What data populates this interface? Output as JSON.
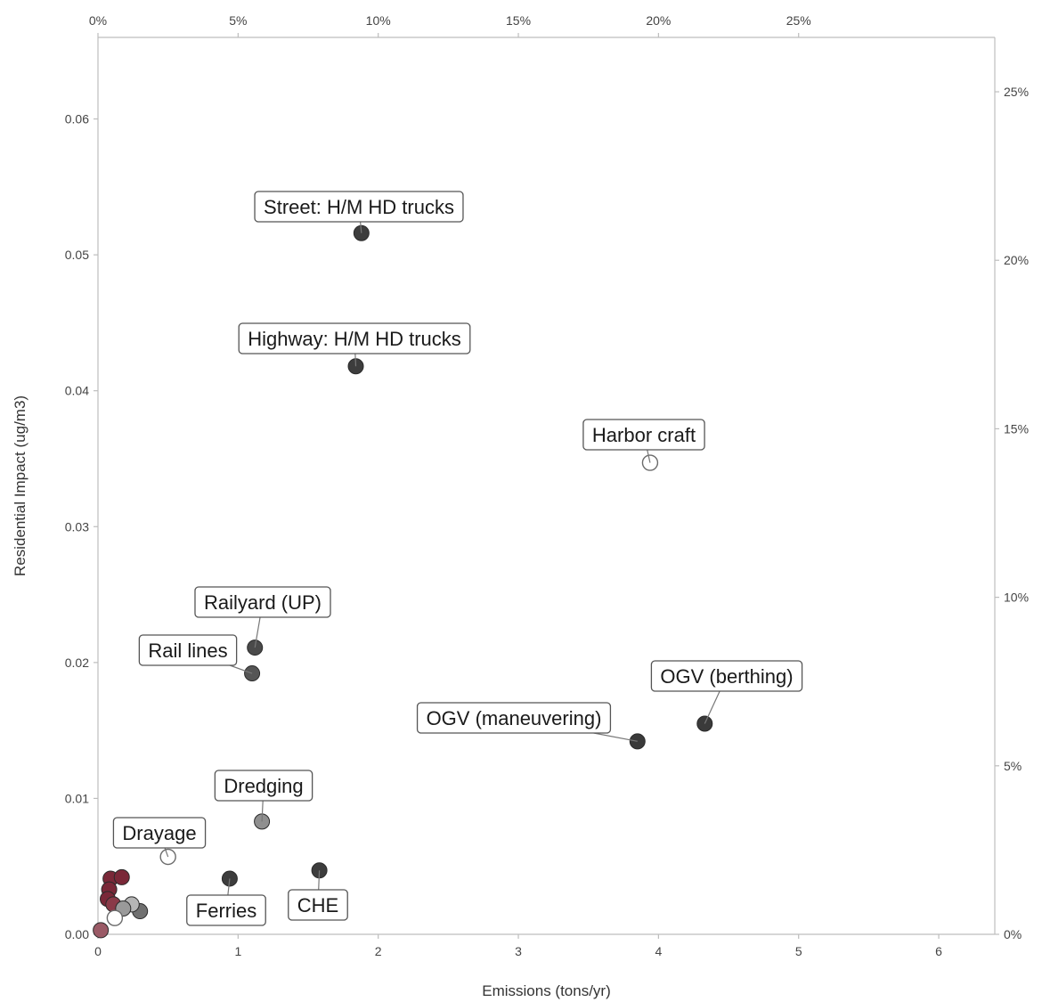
{
  "chart_data": {
    "type": "scatter",
    "title": "",
    "xlabel": "Emissions (tons/yr)",
    "ylabel": "Residential Impact (ug/m3)",
    "xlim": [
      0,
      6.4
    ],
    "ylim": [
      0,
      0.066
    ],
    "x_ticks": [
      {
        "value": 0,
        "label": "0"
      },
      {
        "value": 1,
        "label": "1"
      },
      {
        "value": 2,
        "label": "2"
      },
      {
        "value": 3,
        "label": "3"
      },
      {
        "value": 4,
        "label": "4"
      },
      {
        "value": 5,
        "label": "5"
      },
      {
        "value": 6,
        "label": "6"
      }
    ],
    "y_ticks": [
      {
        "value": 0,
        "label": "0.00"
      },
      {
        "value": 0.01,
        "label": "0.01"
      },
      {
        "value": 0.02,
        "label": "0.02"
      },
      {
        "value": 0.03,
        "label": "0.03"
      },
      {
        "value": 0.04,
        "label": "0.04"
      },
      {
        "value": 0.05,
        "label": "0.05"
      },
      {
        "value": 0.06,
        "label": "0.06"
      }
    ],
    "x2_axis": {
      "position": "top",
      "x_equivalent_per_percent": 0.2,
      "ticks": [
        {
          "value": 0,
          "label": "0%"
        },
        {
          "value": 5,
          "label": "5%"
        },
        {
          "value": 10,
          "label": "10%"
        },
        {
          "value": 15,
          "label": "15%"
        },
        {
          "value": 20,
          "label": "20%"
        },
        {
          "value": 25,
          "label": "25%"
        }
      ]
    },
    "y2_axis": {
      "position": "right",
      "y_equivalent_per_percent": 0.00248,
      "ticks": [
        {
          "value": 0,
          "label": "0%"
        },
        {
          "value": 5,
          "label": "5%"
        },
        {
          "value": 10,
          "label": "10%"
        },
        {
          "value": 15,
          "label": "15%"
        },
        {
          "value": 20,
          "label": "20%"
        },
        {
          "value": 25,
          "label": "25%"
        }
      ]
    },
    "grid": false,
    "points": [
      {
        "x": 1.88,
        "y": 0.0516,
        "label": "Street: H/M HD trucks",
        "color": "#3d3d3d",
        "hollow": false
      },
      {
        "x": 1.84,
        "y": 0.0418,
        "label": "Highway: H/M HD trucks",
        "color": "#3d3d3d",
        "hollow": false
      },
      {
        "x": 3.94,
        "y": 0.0347,
        "label": "Harbor craft",
        "color": "#ffffff",
        "hollow": true
      },
      {
        "x": 1.12,
        "y": 0.0211,
        "label": "Railyard (UP)",
        "color": "#4a4a4a",
        "hollow": false
      },
      {
        "x": 1.1,
        "y": 0.0192,
        "label": "Rail lines",
        "color": "#555555",
        "hollow": false
      },
      {
        "x": 4.33,
        "y": 0.0155,
        "label": "OGV (berthing)",
        "color": "#3a3a3a",
        "hollow": false
      },
      {
        "x": 3.85,
        "y": 0.0142,
        "label": "OGV (maneuvering)",
        "color": "#3a3a3a",
        "hollow": false
      },
      {
        "x": 1.17,
        "y": 0.0083,
        "label": "Dredging",
        "color": "#8f8f8f",
        "hollow": false
      },
      {
        "x": 0.5,
        "y": 0.0057,
        "label": "Drayage",
        "color": "#ffffff",
        "hollow": true
      },
      {
        "x": 1.58,
        "y": 0.0047,
        "label": "CHE",
        "color": "#3d3d3d",
        "hollow": false
      },
      {
        "x": 0.94,
        "y": 0.0041,
        "label": "Ferries",
        "color": "#3d3d3d",
        "hollow": false
      },
      {
        "x": 0.09,
        "y": 0.0041,
        "label": "",
        "color": "#7a2838",
        "hollow": false
      },
      {
        "x": 0.17,
        "y": 0.0042,
        "label": "",
        "color": "#7a2838",
        "hollow": false
      },
      {
        "x": 0.08,
        "y": 0.0033,
        "label": "",
        "color": "#7a2838",
        "hollow": false
      },
      {
        "x": 0.07,
        "y": 0.0026,
        "label": "",
        "color": "#7a2838",
        "hollow": false
      },
      {
        "x": 0.11,
        "y": 0.0022,
        "label": "",
        "color": "#8a3a48",
        "hollow": false
      },
      {
        "x": 0.3,
        "y": 0.0017,
        "label": "",
        "color": "#707070",
        "hollow": false
      },
      {
        "x": 0.24,
        "y": 0.0022,
        "label": "",
        "color": "#b5b5b5",
        "hollow": false
      },
      {
        "x": 0.18,
        "y": 0.0019,
        "label": "",
        "color": "#9a9a9a",
        "hollow": false
      },
      {
        "x": 0.12,
        "y": 0.0012,
        "label": "",
        "color": "#ffffff",
        "hollow": true
      },
      {
        "x": 0.02,
        "y": 0.0003,
        "label": "",
        "color": "#9a5a66",
        "hollow": false
      }
    ]
  }
}
